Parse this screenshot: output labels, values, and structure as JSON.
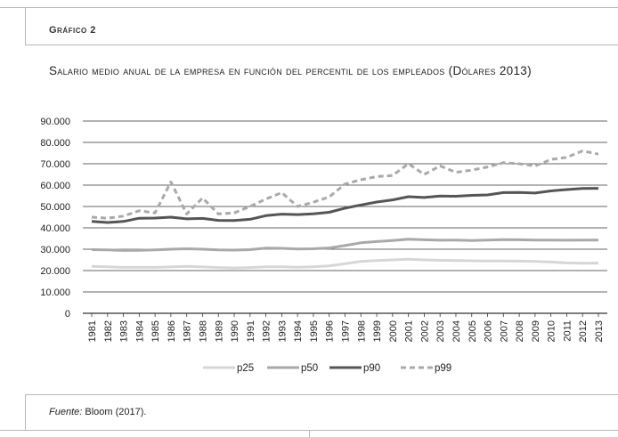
{
  "figure": {
    "label": "Gráfico 2",
    "title": "Salario medio anual de la empresa en función del percentil de los empleados (Dólares 2013)",
    "source_prefix": "Fuente:",
    "source_text": " Bloom (2017)."
  },
  "chart_data": {
    "type": "line",
    "title": "Salario medio anual de la empresa en función del percentil de los empleados (Dólares 2013)",
    "xlabel": "",
    "ylabel": "",
    "ylim": [
      0,
      90000
    ],
    "y_ticks": [
      0,
      10000,
      20000,
      30000,
      40000,
      50000,
      60000,
      70000,
      80000,
      90000
    ],
    "y_tick_labels": [
      "0",
      "10.000",
      "20.000",
      "30.000",
      "40.000",
      "50.000",
      "60.000",
      "70.000",
      "80.000",
      "90.000"
    ],
    "grid": "horizontal",
    "legend_position": "bottom",
    "x": [
      "1981",
      "1982",
      "1983",
      "1984",
      "1985",
      "1986",
      "1987",
      "1988",
      "1989",
      "1990",
      "1991",
      "1992",
      "1993",
      "1994",
      "1995",
      "1996",
      "1997",
      "1998",
      "1999",
      "2000",
      "2001",
      "2002",
      "2003",
      "2004",
      "2005",
      "2006",
      "2007",
      "2008",
      "2009",
      "2010",
      "2011",
      "2012",
      "2013"
    ],
    "series": [
      {
        "name": "p25",
        "color": "#d6d6d6",
        "dash": "solid",
        "values": [
          22000,
          21800,
          21500,
          21500,
          21500,
          21700,
          22000,
          21700,
          21400,
          21200,
          21400,
          21800,
          21800,
          21600,
          21800,
          22200,
          23200,
          24300,
          24700,
          25000,
          25300,
          25000,
          24800,
          24700,
          24600,
          24500,
          24500,
          24400,
          24300,
          24000,
          23600,
          23400,
          23500
        ]
      },
      {
        "name": "p50",
        "color": "#a9a9a9",
        "dash": "solid",
        "values": [
          29800,
          29700,
          29400,
          29500,
          29700,
          30000,
          30200,
          30000,
          29700,
          29600,
          29800,
          30500,
          30400,
          30100,
          30200,
          30600,
          31700,
          33000,
          33600,
          34100,
          34700,
          34400,
          34200,
          34300,
          34100,
          34300,
          34500,
          34400,
          34300,
          34300,
          34200,
          34300,
          34300
        ]
      },
      {
        "name": "p90",
        "color": "#555555",
        "dash": "solid",
        "values": [
          43000,
          42500,
          43000,
          44500,
          44600,
          45000,
          44200,
          44400,
          43500,
          43400,
          44000,
          45700,
          46400,
          46200,
          46600,
          47300,
          49200,
          50700,
          52100,
          53100,
          54600,
          54200,
          54900,
          54800,
          55200,
          55400,
          56500,
          56600,
          56300,
          57300,
          57900,
          58400,
          58500
        ]
      },
      {
        "name": "p99",
        "color": "#a9a9a9",
        "dash": "dashed",
        "values": [
          45000,
          44500,
          45500,
          48000,
          47000,
          61500,
          46500,
          54000,
          46500,
          47000,
          50000,
          53500,
          56500,
          50000,
          52000,
          54500,
          60500,
          62500,
          64000,
          64500,
          70000,
          65000,
          69000,
          66000,
          67000,
          68500,
          70500,
          70000,
          69000,
          72000,
          73000,
          76000,
          74500
        ]
      }
    ]
  }
}
